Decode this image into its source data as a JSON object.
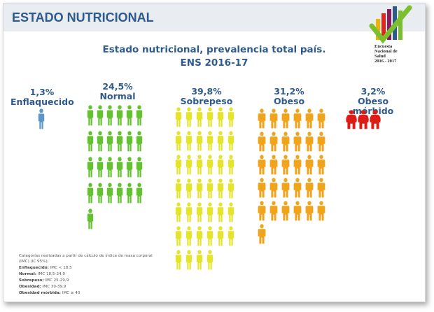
{
  "header": {
    "title": "ESTADO NUTRICIONAL"
  },
  "logo": {
    "line1": "Encuesta",
    "line2": "Nacional de",
    "line3": "Salud",
    "line4": "2016 - 2017",
    "colors": [
      "#f2b300",
      "#e1261c",
      "#8a1b61",
      "#2f5a8e",
      "#7cbf2e",
      "#e8d400"
    ]
  },
  "chart_data": {
    "type": "pictogram",
    "title_line1": "Estado nutricional, prevalencia  total país.",
    "title_line2": "ENS 2016-17",
    "categories": [
      "Enflaquecido",
      "Normal",
      "Sobrepeso",
      "Obeso",
      "Obeso mórbido"
    ],
    "values": [
      1.3,
      24.5,
      39.8,
      31.2,
      3.2
    ],
    "value_labels": [
      "1,3%",
      "24,5%",
      "39,8%",
      "31,2%",
      "3,2%"
    ],
    "unit": "%",
    "icons_per_category": [
      1,
      25,
      40,
      31,
      3
    ],
    "colors": [
      "#5b97c9",
      "#64c231",
      "#e4e42c",
      "#f0a41c",
      "#dd1c18"
    ]
  },
  "notes": {
    "intro": "Categorías realizadas a partir de cálculo de índice de masa corporal (IMC) (IC 95%):",
    "lines": [
      {
        "label": "Enflaquecido:",
        "value": " IMC < 18,5"
      },
      {
        "label": "Normal:",
        "value": " IMC  18,5-24,9"
      },
      {
        "label": "Sobrepeso:",
        "value": " IMC 25-29,9"
      },
      {
        "label": "Obesidad:",
        "value": " IMC 30-39,9"
      },
      {
        "label": "Obesidad mórbida:",
        "value": " IMC ≥ 40"
      }
    ]
  }
}
